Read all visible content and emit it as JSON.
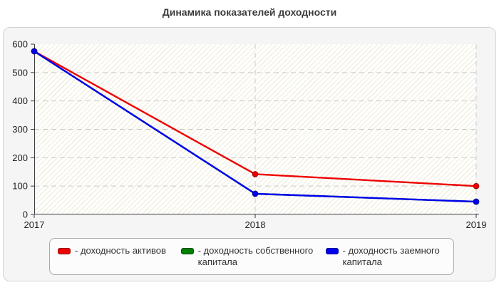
{
  "chart_data": {
    "type": "line",
    "title": "Динамика показателей доходности",
    "x_labels": [
      "2017",
      "2018",
      "2019"
    ],
    "y_ticks": [
      0,
      100,
      200,
      300,
      400,
      500,
      600
    ],
    "ylim": [
      0,
      600
    ],
    "grid": "dashed-horizontal-and-vertical",
    "legend_position": "bottom",
    "plot_background": "hatched-cream-diagonal",
    "series": [
      {
        "key": "assets",
        "name": "доходность активов",
        "legend_label": "- доходность активов",
        "color": "#ee0000",
        "edge": "#990000",
        "values": [
          575,
          142,
          100
        ]
      },
      {
        "key": "equity",
        "name": "доходность собственного капитала",
        "legend_label": "- доходность собственного капитала",
        "color": "#008000",
        "edge": "#004d00",
        "values": [
          575,
          73,
          45
        ]
      },
      {
        "key": "debt",
        "name": "доходность заемного капитала",
        "legend_label": "- доходность заемного капитала",
        "color": "#0000ee",
        "edge": "#000099",
        "values": [
          575,
          73,
          45
        ]
      }
    ]
  }
}
